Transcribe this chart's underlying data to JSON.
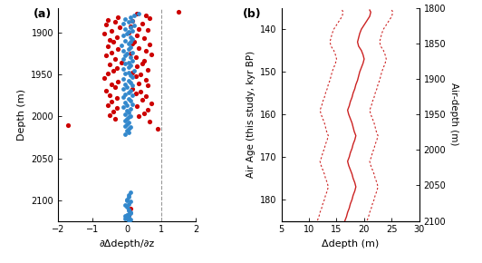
{
  "panel_a_label": "(a)",
  "panel_b_label": "(b)",
  "xlabel_a": "∂Δdepth/∂z",
  "ylabel_a": "Depth (m)",
  "xlabel_b": "Δdepth (m)",
  "ylabel_b_left": "Air Age (this study, kyr BP)",
  "ylabel_b_right": "Air-depth (m)",
  "xlim_a": [
    -2,
    2
  ],
  "ylim_a_top": 1870,
  "ylim_a_bottom": 2125,
  "xlim_b": [
    5,
    30
  ],
  "ylim_b_top": 135,
  "ylim_b_bottom": 185,
  "ylim_br_top": 1800,
  "ylim_br_bottom": 2100,
  "yticks_a": [
    1900,
    1950,
    2000,
    2050,
    2100
  ],
  "xticks_a": [
    -2,
    -1,
    0,
    1,
    2
  ],
  "yticks_b_left": [
    140,
    150,
    160,
    170,
    180
  ],
  "xticks_b": [
    5,
    10,
    15,
    20,
    25,
    30
  ],
  "yticks_b_right": [
    1800,
    1850,
    1900,
    1950,
    2000,
    2050,
    2100
  ],
  "vline_x": 1,
  "vline_color": "#999999",
  "red_color": "#cc0000",
  "blue_color": "#3388cc",
  "line_color": "#cc2222",
  "dot_size_red": 14,
  "dot_size_blue": 12,
  "red_x": [
    0.3,
    0.55,
    -0.25,
    0.65,
    -0.55,
    0.15,
    -0.35,
    0.45,
    -0.6,
    0.1,
    -0.2,
    0.35,
    0.6,
    -0.45,
    0.05,
    -0.65,
    0.3,
    -0.3,
    0.5,
    -0.5,
    0.2,
    -0.4,
    0.15,
    0.65,
    -0.55,
    0.35,
    -0.25,
    0.55,
    -0.45,
    0.1,
    0.7,
    -0.6,
    0.25,
    -0.35,
    0.5,
    -0.15,
    0.45,
    -0.5,
    0.3,
    -0.3,
    0.6,
    -0.4,
    0.15,
    -0.55,
    0.4,
    0.25,
    -0.65,
    0.55,
    -0.25,
    0.35,
    -0.45,
    0.6,
    -0.35,
    0.15,
    -0.6,
    0.4,
    0.25,
    -0.5,
    0.55,
    -0.3,
    0.45,
    -0.45,
    0.7,
    -0.55,
    0.3,
    -0.3,
    0.6,
    -0.4,
    0.5,
    -0.5,
    0.35,
    -0.35,
    0.65,
    -1.7,
    0.9,
    1.5,
    0.1,
    0.05
  ],
  "red_y": [
    1877,
    1879,
    1881,
    1882,
    1884,
    1885,
    1887,
    1889,
    1890,
    1892,
    1893,
    1895,
    1896,
    1898,
    1900,
    1901,
    1903,
    1905,
    1906,
    1908,
    1910,
    1911,
    1913,
    1914,
    1916,
    1918,
    1919,
    1921,
    1923,
    1925,
    1926,
    1927,
    1929,
    1931,
    1933,
    1935,
    1937,
    1938,
    1940,
    1942,
    1944,
    1945,
    1947,
    1948,
    1950,
    1952,
    1954,
    1956,
    1958,
    1960,
    1962,
    1963,
    1965,
    1967,
    1969,
    1970,
    1972,
    1974,
    1976,
    1978,
    1980,
    1982,
    1984,
    1986,
    1988,
    1990,
    1992,
    1994,
    1996,
    1998,
    2000,
    2003,
    2006,
    2010,
    2015,
    1875,
    2110,
    2118
  ],
  "blue_x": [
    0.35,
    0.2,
    0.1,
    -0.05,
    0.15,
    0.05,
    -0.1,
    0.2,
    0.1,
    -0.05,
    0.15,
    0.05,
    0.0,
    -0.1,
    0.1,
    0.15,
    -0.05,
    0.1,
    0.05,
    -0.15,
    0.1,
    0.05,
    -0.1,
    0.15,
    0.0,
    -0.05,
    0.1,
    -0.1,
    0.15,
    0.05,
    -0.05,
    0.1,
    0.05,
    -0.1,
    0.2,
    0.05,
    -0.05,
    0.1,
    0.15,
    -0.1,
    0.05,
    0.1,
    -0.05,
    0.15,
    0.0,
    -0.1,
    0.1,
    0.05,
    -0.05,
    0.15,
    -0.1,
    0.05,
    0.1,
    -0.05,
    0.15,
    0.0,
    -0.1,
    0.1,
    0.0,
    0.05,
    -0.05,
    0.1,
    0.05,
    0.0,
    -0.05,
    0.05,
    0.0,
    -0.05,
    0.1,
    0.05,
    0.0,
    0.05,
    -0.05,
    0.1,
    0.05,
    0.0,
    -0.05,
    0.05,
    0.1,
    0.0,
    -0.05,
    0.05,
    0.0,
    -0.05,
    0.1,
    0.05,
    0.05,
    0.0,
    0.1,
    0.05,
    0.0,
    0.05,
    0.1,
    0.05
  ],
  "blue_y": [
    1877,
    1879,
    1881,
    1883,
    1885,
    1887,
    1889,
    1891,
    1893,
    1895,
    1897,
    1899,
    1901,
    1903,
    1905,
    1907,
    1909,
    1911,
    1913,
    1915,
    1917,
    1919,
    1921,
    1923,
    1925,
    1927,
    1929,
    1931,
    1933,
    1935,
    1937,
    1939,
    1941,
    1943,
    1945,
    1947,
    1949,
    1951,
    1953,
    1955,
    1957,
    1959,
    1961,
    1963,
    1965,
    1967,
    1969,
    1971,
    1973,
    1975,
    1977,
    1979,
    1981,
    1983,
    1985,
    1987,
    1989,
    1991,
    1993,
    1995,
    1997,
    1999,
    2001,
    2003,
    2005,
    2007,
    2009,
    2011,
    2013,
    2015,
    2017,
    2019,
    2021,
    2091,
    2096,
    2101,
    2106,
    2111,
    2116,
    2118,
    2119,
    2120,
    2121,
    2122,
    2123,
    2124,
    2094,
    2099,
    2102,
    2105,
    2108,
    2112,
    2115,
    2117
  ],
  "line_y": [
    135.5,
    136,
    137,
    138,
    139,
    140,
    141,
    142,
    143,
    144,
    145,
    146,
    147,
    148,
    149,
    150,
    151,
    152,
    153,
    154,
    155,
    156,
    157,
    158,
    159,
    160,
    161,
    162,
    163,
    164,
    165,
    166,
    167,
    168,
    169,
    170,
    171,
    172,
    173,
    174,
    175,
    176,
    177,
    178,
    179,
    180,
    181,
    182,
    183,
    184,
    185
  ],
  "line_solid_x": [
    21.0,
    21.2,
    21.0,
    20.5,
    20.0,
    19.5,
    19.2,
    19.0,
    18.8,
    19.0,
    19.5,
    19.8,
    20.0,
    19.8,
    19.5,
    19.2,
    19.0,
    18.8,
    18.5,
    18.3,
    18.0,
    17.8,
    17.5,
    17.3,
    17.0,
    17.2,
    17.5,
    17.8,
    18.0,
    18.2,
    18.5,
    18.3,
    18.0,
    17.8,
    17.5,
    17.3,
    17.0,
    17.2,
    17.5,
    17.8,
    18.0,
    18.3,
    18.5,
    18.3,
    18.0,
    17.8,
    17.5,
    17.3,
    17.0,
    16.8,
    16.5
  ],
  "line_dotted_left_x": [
    16.0,
    16.2,
    16.0,
    15.5,
    15.0,
    14.5,
    14.2,
    14.0,
    13.8,
    14.0,
    14.5,
    14.8,
    15.0,
    14.8,
    14.5,
    14.2,
    14.0,
    13.8,
    13.5,
    13.3,
    13.0,
    12.8,
    12.5,
    12.3,
    12.0,
    12.2,
    12.5,
    12.8,
    13.0,
    13.2,
    13.5,
    13.3,
    13.0,
    12.8,
    12.5,
    12.3,
    12.0,
    12.2,
    12.5,
    12.8,
    13.0,
    13.3,
    13.5,
    13.3,
    13.0,
    12.8,
    12.5,
    12.3,
    12.0,
    11.8,
    11.5
  ],
  "line_dotted_right_x": [
    25.0,
    25.2,
    25.0,
    24.5,
    24.0,
    23.5,
    23.2,
    23.0,
    22.8,
    23.0,
    23.5,
    23.8,
    24.0,
    23.8,
    23.5,
    23.2,
    23.0,
    22.8,
    22.5,
    22.3,
    22.0,
    21.8,
    21.5,
    21.3,
    21.0,
    21.2,
    21.5,
    21.8,
    22.0,
    22.2,
    22.5,
    22.3,
    22.0,
    21.8,
    21.5,
    21.3,
    21.0,
    21.2,
    21.5,
    21.8,
    22.0,
    22.3,
    22.5,
    22.3,
    22.0,
    21.8,
    21.5,
    21.3,
    21.0,
    20.8,
    20.5
  ]
}
